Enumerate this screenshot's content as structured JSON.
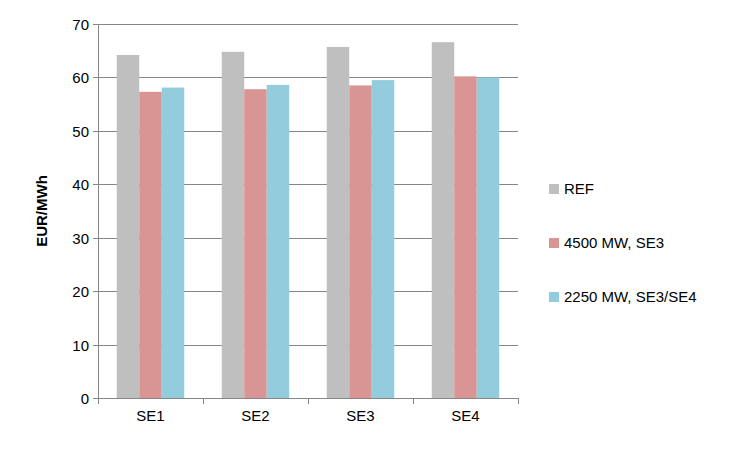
{
  "chart_data": {
    "type": "bar",
    "ylabel": "EUR/MWh",
    "categories": [
      "SE1",
      "SE2",
      "SE3",
      "SE4"
    ],
    "series": [
      {
        "name": "REF",
        "color": "#bfbfbf",
        "values": [
          64.2,
          64.8,
          65.7,
          66.6
        ]
      },
      {
        "name": "4500 MW, SE3",
        "color": "#d99594",
        "values": [
          57.3,
          57.8,
          58.5,
          60.2
        ]
      },
      {
        "name": "2250 MW, SE3/SE4",
        "color": "#93cddd",
        "values": [
          58.1,
          58.6,
          59.5,
          60.0
        ]
      }
    ],
    "ylim": [
      0,
      70
    ],
    "yticks": [
      0,
      10,
      20,
      30,
      40,
      50,
      60,
      70
    ],
    "grid": true,
    "legend": "right"
  }
}
